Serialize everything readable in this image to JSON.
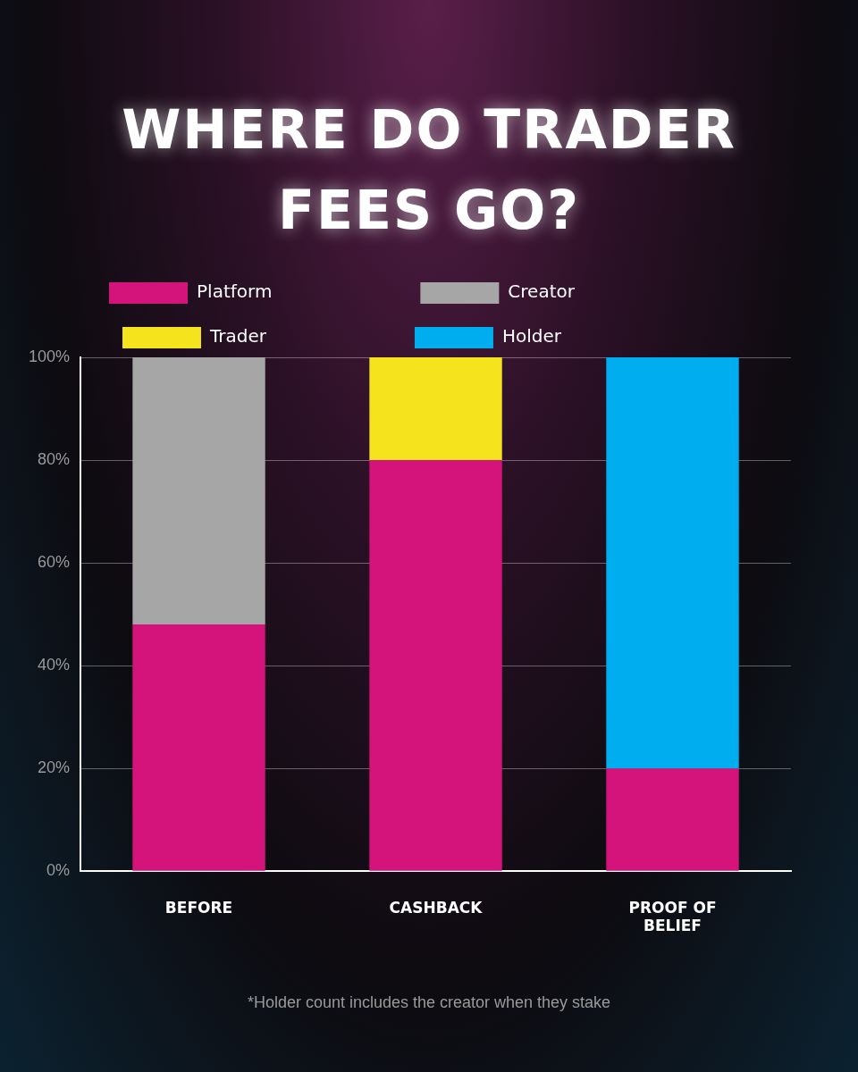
{
  "chart_data": {
    "type": "bar",
    "title": "WHERE DO TRADER FEES GO?",
    "categories": [
      "BEFORE",
      "CASHBACK",
      "PROOF OF BELIEF"
    ],
    "stacked": true,
    "series": [
      {
        "name": "Platform",
        "color": "#d4147a",
        "values": [
          48,
          80,
          20
        ]
      },
      {
        "name": "Creator",
        "color": "#a6a6a6",
        "values": [
          52,
          null,
          null
        ]
      },
      {
        "name": "Trader",
        "color": "#f5e31e",
        "values": [
          null,
          20,
          null
        ]
      },
      {
        "name": "Holder",
        "color": "#00adee",
        "values": [
          null,
          null,
          80
        ]
      }
    ],
    "ylim": [
      0,
      100
    ],
    "yticks": [
      {
        "value": 0,
        "label": "0%"
      },
      {
        "value": 20,
        "label": "20%"
      },
      {
        "value": 40,
        "label": "40%"
      },
      {
        "value": 60,
        "label": "60%"
      },
      {
        "value": 80,
        "label": "80%"
      },
      {
        "value": 100,
        "label": "100%"
      }
    ],
    "grid": "y",
    "legend": "top",
    "annotations": [
      "*Holder count includes the creator when they stake"
    ]
  }
}
